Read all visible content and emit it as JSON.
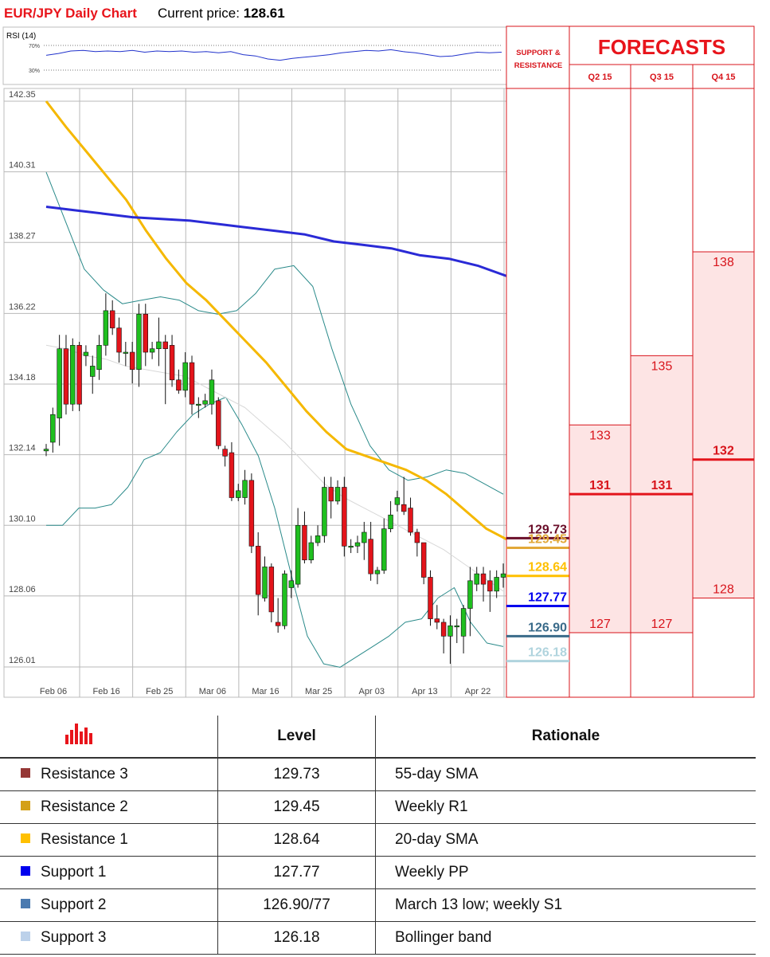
{
  "header": {
    "title": "EUR/JPY Daily Chart",
    "price_label": "Current price:",
    "price_value": "128.61"
  },
  "rsi": {
    "label": "RSI (14)",
    "levels": [
      "70%",
      "30%"
    ]
  },
  "chart_data": {
    "type": "candlestick",
    "title": "EUR/JPY Daily Chart",
    "ylim": [
      126.01,
      142.35
    ],
    "y_ticks": [
      "142.35",
      "140.31",
      "138.27",
      "136.22",
      "134.18",
      "132.14",
      "130.10",
      "128.06",
      "126.01"
    ],
    "x_ticks": [
      "Feb 06",
      "Feb 16",
      "Feb 25",
      "Mar 06",
      "Mar 16",
      "Mar 25",
      "Apr 03",
      "Apr 13",
      "Apr 22"
    ],
    "candles": [
      [
        132.25,
        132.3,
        132.1,
        132.45
      ],
      [
        132.5,
        133.3,
        132.2,
        133.5
      ],
      [
        133.2,
        135.2,
        132.4,
        135.6
      ],
      [
        135.2,
        133.6,
        133.3,
        135.6
      ],
      [
        133.6,
        135.3,
        133.4,
        135.5
      ],
      [
        135.3,
        133.6,
        133.4,
        135.4
      ],
      [
        135.0,
        135.1,
        134.7,
        135.3
      ],
      [
        134.4,
        134.7,
        133.9,
        135.0
      ],
      [
        134.6,
        135.3,
        134.3,
        135.6
      ],
      [
        135.3,
        136.3,
        135.0,
        136.8
      ],
      [
        136.3,
        135.8,
        135.6,
        136.6
      ],
      [
        135.8,
        135.1,
        134.8,
        136.1
      ],
      [
        135.1,
        135.1,
        134.7,
        135.4
      ],
      [
        135.1,
        134.6,
        134.2,
        135.4
      ],
      [
        134.6,
        136.2,
        134.1,
        136.5
      ],
      [
        136.2,
        135.1,
        134.7,
        136.5
      ],
      [
        135.1,
        135.2,
        134.9,
        135.4
      ],
      [
        135.2,
        135.4,
        134.7,
        136.1
      ],
      [
        135.4,
        135.2,
        133.6,
        135.6
      ],
      [
        135.3,
        134.3,
        134.1,
        135.6
      ],
      [
        134.3,
        134.0,
        133.9,
        134.6
      ],
      [
        134.0,
        134.8,
        133.8,
        135.1
      ],
      [
        134.8,
        133.6,
        133.3,
        135.0
      ],
      [
        133.6,
        133.6,
        133.2,
        133.8
      ],
      [
        133.6,
        133.7,
        133.5,
        133.9
      ],
      [
        133.6,
        134.3,
        133.3,
        134.6
      ],
      [
        133.7,
        132.4,
        132.3,
        133.8
      ],
      [
        132.3,
        132.1,
        131.8,
        132.4
      ],
      [
        132.2,
        130.9,
        130.8,
        132.5
      ],
      [
        130.9,
        131.1,
        130.8,
        131.3
      ],
      [
        130.9,
        131.4,
        130.7,
        131.7
      ],
      [
        131.4,
        129.5,
        129.3,
        131.6
      ],
      [
        129.5,
        128.1,
        127.5,
        129.9
      ],
      [
        128.0,
        128.9,
        127.9,
        129.2
      ],
      [
        128.9,
        127.6,
        127.3,
        129.0
      ],
      [
        127.3,
        127.2,
        127.0,
        128.0
      ],
      [
        127.2,
        128.7,
        127.1,
        128.8
      ],
      [
        128.3,
        128.5,
        128.0,
        128.8
      ],
      [
        128.4,
        130.1,
        128.3,
        130.6
      ],
      [
        130.1,
        129.1,
        129.0,
        130.5
      ],
      [
        129.1,
        129.6,
        129.0,
        129.8
      ],
      [
        129.6,
        129.8,
        129.5,
        130.1
      ],
      [
        129.8,
        131.2,
        129.6,
        131.5
      ],
      [
        131.2,
        130.8,
        130.3,
        131.5
      ],
      [
        130.8,
        131.2,
        130.7,
        131.4
      ],
      [
        131.2,
        129.5,
        129.2,
        131.5
      ],
      [
        129.5,
        129.5,
        129.3,
        129.7
      ],
      [
        129.5,
        129.6,
        129.3,
        129.8
      ],
      [
        129.6,
        129.9,
        129.1,
        130.2
      ],
      [
        129.7,
        128.7,
        128.5,
        130.2
      ],
      [
        128.7,
        128.8,
        128.4,
        128.9
      ],
      [
        128.8,
        130.0,
        128.7,
        130.3
      ],
      [
        130.0,
        130.4,
        129.9,
        130.8
      ],
      [
        130.7,
        130.9,
        130.5,
        131.1
      ],
      [
        130.7,
        130.5,
        130.4,
        131.5
      ],
      [
        130.6,
        129.9,
        129.8,
        130.9
      ],
      [
        129.9,
        129.6,
        129.2,
        130.0
      ],
      [
        129.6,
        128.6,
        128.4,
        129.6
      ],
      [
        128.6,
        127.4,
        127.2,
        128.8
      ],
      [
        127.4,
        127.3,
        127.1,
        127.8
      ],
      [
        127.3,
        126.9,
        126.4,
        127.4
      ],
      [
        126.9,
        127.2,
        126.1,
        127.5
      ],
      [
        127.2,
        127.2,
        126.7,
        127.4
      ],
      [
        126.9,
        127.7,
        126.4,
        127.8
      ],
      [
        127.7,
        128.5,
        126.9,
        128.9
      ],
      [
        128.4,
        128.7,
        128.2,
        128.9
      ],
      [
        128.7,
        128.4,
        127.9,
        128.9
      ],
      [
        128.5,
        128.2,
        127.6,
        128.8
      ],
      [
        128.2,
        128.6,
        128.0,
        128.8
      ],
      [
        128.6,
        128.7,
        128.3,
        129.0
      ]
    ],
    "ma20": [
      135.3,
      135.2,
      135.0,
      134.9,
      134.7,
      134.6,
      134.5,
      134.4,
      134.1,
      133.8,
      133.5,
      133.0,
      132.5,
      131.9,
      131.3,
      130.9,
      130.6,
      130.3,
      130.0,
      129.7,
      129.4,
      129.0,
      128.6,
      128.2
    ],
    "ma55": [
      142.35,
      141.6,
      140.9,
      140.2,
      139.5,
      138.6,
      137.8,
      137.1,
      136.6,
      136.0,
      135.4,
      134.8,
      134.1,
      133.4,
      132.8,
      132.3,
      132.1,
      131.9,
      131.7,
      131.4,
      131.0,
      130.5,
      130.0,
      129.7
    ],
    "ma200": [
      139.3,
      139.2,
      139.1,
      139.0,
      138.95,
      138.9,
      138.8,
      138.7,
      138.6,
      138.5,
      138.3,
      138.2,
      138.1,
      137.9,
      137.8,
      137.6,
      137.3
    ],
    "bb_upper": [
      140.3,
      138.9,
      137.5,
      136.9,
      136.5,
      136.6,
      136.7,
      136.6,
      136.3,
      136.2,
      136.3,
      136.8,
      137.5,
      137.6,
      137.0,
      135.2,
      133.6,
      132.4,
      131.7,
      131.4,
      131.5,
      131.7,
      131.6,
      131.3,
      131.0
    ],
    "bb_lower": [
      130.1,
      130.1,
      130.6,
      130.6,
      130.7,
      131.2,
      132.0,
      132.2,
      132.8,
      133.3,
      133.6,
      133.8,
      133.0,
      132.1,
      130.6,
      128.7,
      126.9,
      126.1,
      126.0,
      126.3,
      126.6,
      126.9,
      127.3,
      127.4,
      128.0,
      128.3,
      127.3,
      126.7,
      126.6
    ],
    "rsi_values": [
      54,
      57,
      61,
      62,
      60,
      61,
      60,
      62,
      59,
      61,
      60,
      61,
      59,
      60,
      58,
      60,
      55,
      53,
      48,
      46,
      49,
      51,
      53,
      55,
      58,
      60,
      62,
      61,
      63,
      60,
      58,
      55,
      52,
      53,
      56,
      59,
      58,
      59
    ]
  },
  "levels_panel": {
    "header": "SUPPORT & RESISTANCE",
    "items": [
      {
        "value": "129.73",
        "price": 129.73,
        "color": "#6b0f2a"
      },
      {
        "value": "129.45",
        "price": 129.45,
        "color": "#e2a838"
      },
      {
        "value": "128.64",
        "price": 128.64,
        "color": "#ffc000"
      },
      {
        "value": "127.77",
        "price": 127.77,
        "color": "#0000ee"
      },
      {
        "value": "126.90",
        "price": 126.9,
        "color": "#3a6b8a"
      },
      {
        "value": "126.18",
        "price": 126.18,
        "color": "#b0d4de"
      }
    ]
  },
  "forecasts": {
    "title": "FORECASTS",
    "columns": [
      {
        "label": "Q2 15",
        "high": "133",
        "high_price": 133.0,
        "mid": "131",
        "mid_price": 131.0,
        "low": "127",
        "low_price": 127.0
      },
      {
        "label": "Q3 15",
        "high": "135",
        "high_price": 135.0,
        "mid": "131",
        "mid_price": 131.0,
        "low": "127",
        "low_price": 127.0
      },
      {
        "label": "Q4 15",
        "high": "138",
        "high_price": 138.0,
        "mid": "132",
        "mid_price": 132.0,
        "low": "128",
        "low_price": 128.0
      }
    ]
  },
  "table": {
    "headers": {
      "level": "Level",
      "rationale": "Rationale"
    },
    "rows": [
      {
        "label": "Resistance 3",
        "level": "129.73",
        "rationale": "55-day SMA",
        "color": "#953735"
      },
      {
        "label": "Resistance 2",
        "level": "129.45",
        "rationale": "Weekly R1",
        "color": "#d4a017"
      },
      {
        "label": "Resistance 1",
        "level": "128.64",
        "rationale": "20-day SMA",
        "color": "#ffc000"
      },
      {
        "label": "Support 1",
        "level": "127.77",
        "rationale": "Weekly PP",
        "color": "#0000ee"
      },
      {
        "label": "Support 2",
        "level": "126.90/77",
        "rationale": "March 13 low; weekly S1",
        "color": "#4a7ab0"
      },
      {
        "label": "Support 3",
        "level": "126.18",
        "rationale": "Bollinger band",
        "color": "#bcd1ea"
      }
    ]
  }
}
